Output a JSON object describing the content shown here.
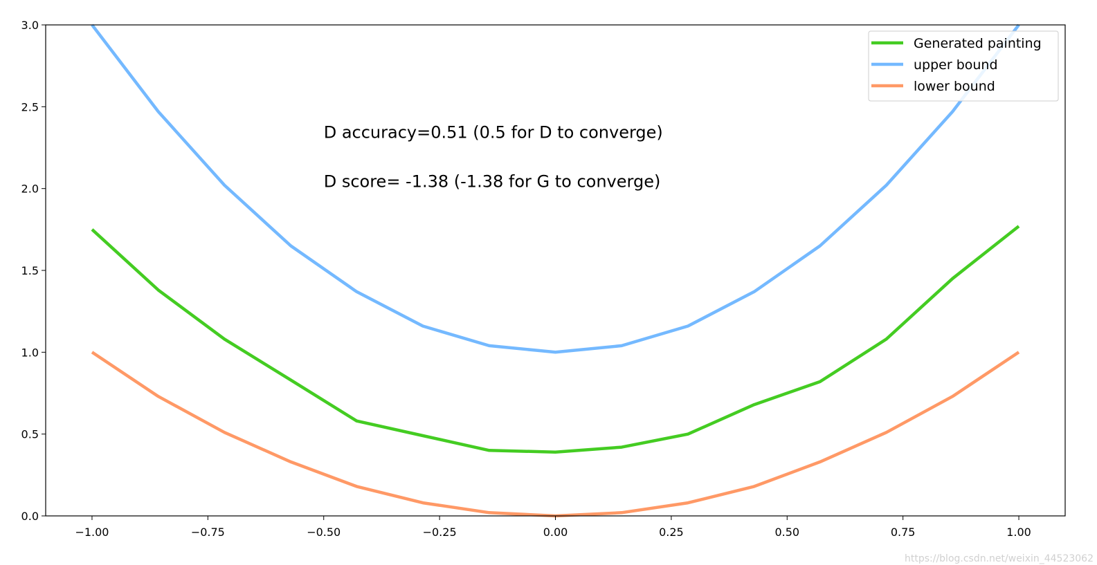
{
  "chart_data": {
    "type": "line",
    "title": "",
    "xlabel": "",
    "ylabel": "",
    "xlim": [
      -1.1,
      1.1
    ],
    "ylim": [
      0.0,
      3.0
    ],
    "x_ticks": [
      -1.0,
      -0.75,
      -0.5,
      -0.25,
      0.0,
      0.25,
      0.5,
      0.75,
      1.0
    ],
    "x_tick_labels": [
      "−1.00",
      "−0.75",
      "−0.50",
      "−0.25",
      "0.00",
      "0.25",
      "0.50",
      "0.75",
      "1.00"
    ],
    "y_ticks": [
      0.0,
      0.5,
      1.0,
      1.5,
      2.0,
      2.5,
      3.0
    ],
    "y_tick_labels": [
      "0.0",
      "0.5",
      "1.0",
      "1.5",
      "2.0",
      "2.5",
      "3.0"
    ],
    "grid": false,
    "legend_position": "top-right",
    "x": [
      -1.0,
      -0.857,
      -0.714,
      -0.571,
      -0.429,
      -0.286,
      -0.143,
      0.0,
      0.143,
      0.286,
      0.429,
      0.571,
      0.714,
      0.857,
      1.0
    ],
    "series": [
      {
        "name": "Generated painting",
        "color": "#44cc22",
        "values": [
          1.75,
          1.38,
          1.08,
          0.83,
          0.58,
          0.49,
          0.4,
          0.39,
          0.42,
          0.5,
          0.68,
          0.82,
          1.08,
          1.45,
          1.77
        ]
      },
      {
        "name": "upper bound",
        "color": "#74b9ff",
        "values": [
          3.0,
          2.47,
          2.02,
          1.65,
          1.37,
          1.16,
          1.04,
          1.0,
          1.04,
          1.16,
          1.37,
          1.65,
          2.02,
          2.47,
          3.0
        ]
      },
      {
        "name": "lower bound",
        "color": "#ff9966",
        "values": [
          1.0,
          0.73,
          0.51,
          0.33,
          0.18,
          0.08,
          0.02,
          0.0,
          0.02,
          0.08,
          0.18,
          0.33,
          0.51,
          0.73,
          1.0
        ]
      }
    ],
    "annotations": [
      {
        "text": "D accuracy=0.51 (0.5 for D to converge)",
        "x": -0.5,
        "y": 2.31
      },
      {
        "text": "D score= -1.38 (-1.38 for G to converge)",
        "x": -0.5,
        "y": 2.01
      }
    ]
  },
  "watermark": "https://blog.csdn.net/weixin_44523062"
}
